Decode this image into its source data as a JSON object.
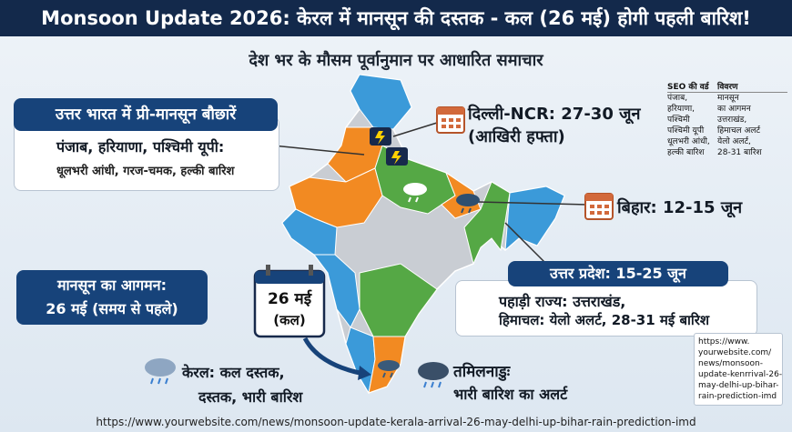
{
  "header": {
    "title": "Monsoon Update 2026: केरल में मानसून की दस्तक - कल (26 मई) होगी पहली बारिश!"
  },
  "subtitle": "देश भर के मौसम पूर्वानुमान पर आधारित समाचार",
  "north": {
    "heading": "उत्तर भारत में प्री-मानसून बौछारें",
    "region": "पंजाब, हरियाणा, पश्चिमी यूपी:",
    "detail": "धूलभरी आंधी, गरज-चमक, हल्की बारिश"
  },
  "delhi": {
    "lines": [
      "दिल्ली-NCR: 27-30 जून",
      "(आखिरी हफ्ता)"
    ]
  },
  "bihar": {
    "label": "बिहार: 12-15 जून"
  },
  "uttar_pradesh": {
    "heading": "उत्तर प्रदेश: 15-25 जून",
    "lines": [
      "पहाड़ी राज्य: उत्तराखंड,",
      "हिमाचल: येलो अलर्ट, 28-31 मई बारिश"
    ]
  },
  "arrival": {
    "lines": [
      "मानसून का आगमन:",
      "26 मई (समय से पहले)"
    ]
  },
  "calendar": {
    "lines": [
      "26 मई",
      "(कल)"
    ]
  },
  "kerala": {
    "lines": [
      "केरल: कल दस्तक,",
      "दस्तक, भारी बारिश"
    ]
  },
  "tamil_nadu": {
    "lines": [
      "तमिलनाडुः",
      "भारी बारिश का अलर्ट"
    ]
  },
  "seo_table": {
    "headers": [
      "SEO की वर्ड",
      "विवरण"
    ],
    "rows": [
      [
        "पंजाब,",
        "मानसून"
      ],
      [
        "हरियाणा,",
        "का आगमन"
      ],
      [
        "पश्चिमी",
        "उत्तराखंड,"
      ],
      [
        "पश्चिमी यूपी",
        "हिमाचल अलर्ट"
      ],
      [
        "धूलभरी आंधी,",
        "येलो अलर्ट,"
      ],
      [
        "हल्की बारिश",
        "28-31 बारिश"
      ]
    ]
  },
  "url_box": {
    "lines": [
      "https://www.",
      "yourwebsite.com/",
      "news/monsoon-",
      "update-kenrrival-26-",
      "may-delhi-up-bihar-",
      "rain-prediction-imd"
    ]
  },
  "footer": {
    "url": "https://www.yourwebsite.com/news/monsoon-update-kerala-arrival-26-may-delhi-up-bihar-rain-prediction-imd"
  }
}
